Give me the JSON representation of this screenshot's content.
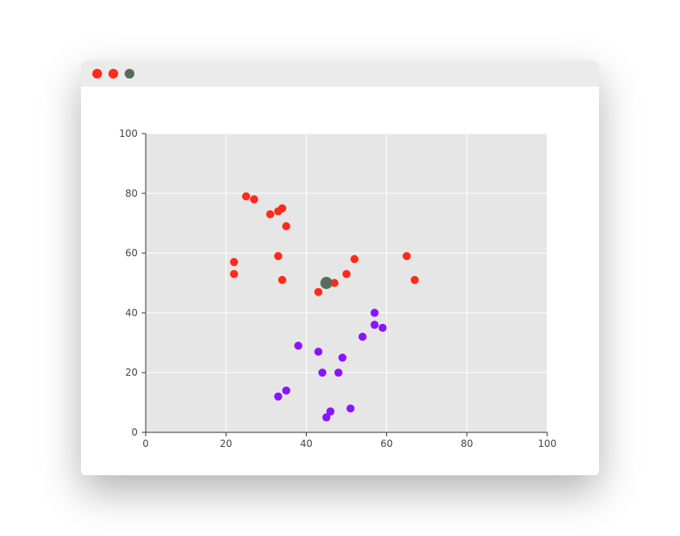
{
  "window": {
    "buttons": [
      {
        "name": "close",
        "color": "#ff2a1a"
      },
      {
        "name": "minimize",
        "color": "#ff2a1a"
      },
      {
        "name": "maximize",
        "color": "#5a6b5a"
      }
    ]
  },
  "chart_data": {
    "type": "scatter",
    "xlim": [
      0,
      100
    ],
    "ylim": [
      0,
      100
    ],
    "xticks": [
      "0",
      "20",
      "40",
      "60",
      "80",
      "100"
    ],
    "yticks": [
      "0",
      "20",
      "40",
      "60",
      "80",
      "100"
    ],
    "grid": true,
    "series": [
      {
        "color": "#ff2a1a",
        "points": [
          [
            25,
            79
          ],
          [
            27,
            78
          ],
          [
            31,
            73
          ],
          [
            33,
            74
          ],
          [
            34,
            75
          ],
          [
            35,
            69
          ],
          [
            22,
            57
          ],
          [
            22,
            53
          ],
          [
            33,
            59
          ],
          [
            34,
            51
          ],
          [
            43,
            47
          ],
          [
            47,
            50
          ],
          [
            50,
            53
          ],
          [
            52,
            58
          ],
          [
            65,
            59
          ],
          [
            67,
            51
          ]
        ]
      },
      {
        "color": "#8a14ff",
        "points": [
          [
            57,
            40
          ],
          [
            57,
            36
          ],
          [
            59,
            35
          ],
          [
            54,
            32
          ],
          [
            38,
            29
          ],
          [
            43,
            27
          ],
          [
            49,
            25
          ],
          [
            44,
            20
          ],
          [
            48,
            20
          ],
          [
            35,
            14
          ],
          [
            33,
            12
          ],
          [
            46,
            7
          ],
          [
            45,
            5
          ],
          [
            51,
            8
          ]
        ]
      },
      {
        "color": "#5a6b5a",
        "points": [
          [
            45,
            50
          ]
        ],
        "marker": "large"
      }
    ]
  }
}
